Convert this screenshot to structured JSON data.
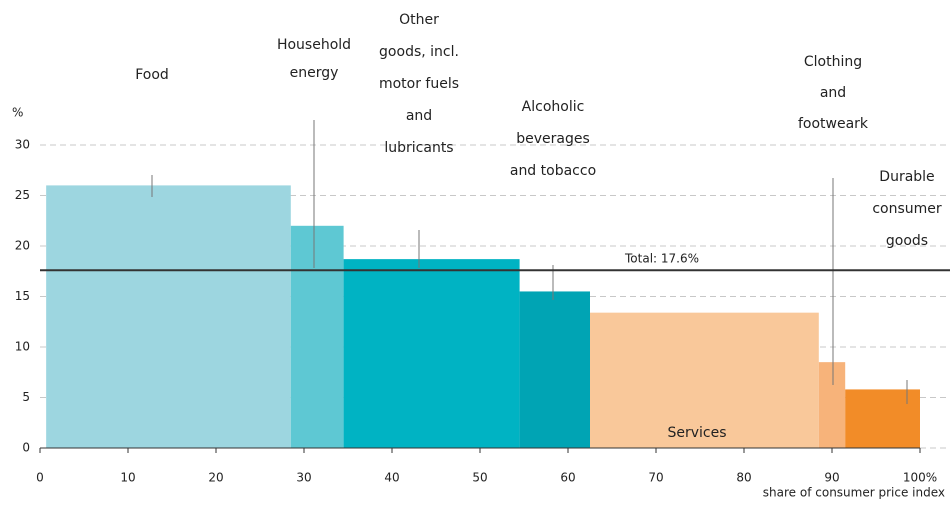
{
  "chart_data": {
    "type": "variable-width-bar",
    "y_unit": "%",
    "x_label": "share of consumer price index",
    "categories": [
      [
        "Food"
      ],
      [
        "Household",
        "energy"
      ],
      [
        "Other",
        "goods, incl.",
        "motor fuels",
        "and",
        "lubricants"
      ],
      [
        "Alcoholic",
        "beverages",
        "and  tobacco"
      ],
      [
        "Services"
      ],
      [
        "Clothing",
        "and",
        "footweark"
      ],
      [
        "Durable",
        "consumer",
        "goods"
      ]
    ],
    "bins": [
      0.7,
      28.5,
      34.5,
      54.5,
      62.5,
      88.5,
      91.5,
      100
    ],
    "values": [
      26,
      22,
      18.7,
      15.5,
      13.4,
      8.5,
      5.8
    ],
    "colors": [
      "#9dd6e0",
      "#5ec8d3",
      "#00b3c3",
      "#00a4b4",
      "#f9c89a",
      "#f7b37a",
      "#f28c28"
    ],
    "total": {
      "value": 17.6,
      "label": "Total: 17.6%"
    },
    "xlim": [
      0,
      100
    ],
    "xticks": [
      0,
      10,
      20,
      30,
      40,
      50,
      60,
      70,
      80,
      90,
      {
        "value": 100,
        "label": "100%"
      }
    ],
    "ylim": [
      0,
      30
    ],
    "yticks": [
      0,
      5,
      10,
      15,
      20,
      25,
      30
    ],
    "grid": true
  }
}
